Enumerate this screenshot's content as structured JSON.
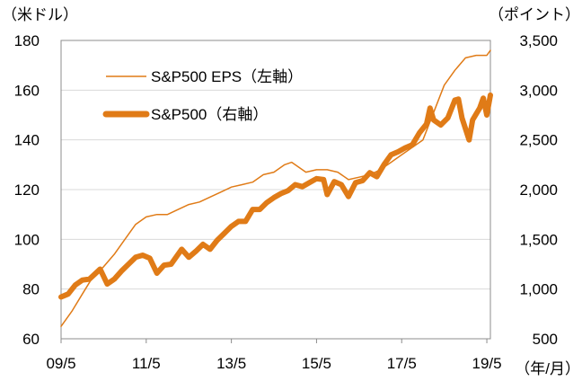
{
  "chart_data": {
    "type": "line",
    "title": "",
    "left_axis": {
      "unit": "（米ドル）",
      "ylim": [
        60,
        180
      ],
      "ticks": [
        "60",
        "80",
        "100",
        "120",
        "140",
        "160",
        "180"
      ]
    },
    "right_axis": {
      "unit": "（ポイント）",
      "ylim": [
        500,
        3500
      ],
      "ticks": [
        "500",
        "1,000",
        "1,500",
        "2,000",
        "2,500",
        "3,000",
        "3,500"
      ]
    },
    "x_axis": {
      "unit": "（年/月）",
      "range": [
        "2009-05",
        "2019-06"
      ],
      "ticks": [
        "09/5",
        "11/5",
        "13/5",
        "15/5",
        "17/5",
        "19/5"
      ]
    },
    "grid": true,
    "legend": "top-left",
    "colors": {
      "line": "#E07B17",
      "grid": "#d9d9d9",
      "axis": "#8c8c8c"
    },
    "series": [
      {
        "name": "S&P500 EPS（左軸）",
        "axis": "left",
        "style": "thin",
        "x": [
          "2009-05",
          "2009-08",
          "2009-11",
          "2010-02",
          "2010-05",
          "2010-08",
          "2010-11",
          "2011-02",
          "2011-05",
          "2011-08",
          "2011-11",
          "2012-02",
          "2012-05",
          "2012-08",
          "2012-11",
          "2013-02",
          "2013-05",
          "2013-08",
          "2013-11",
          "2014-02",
          "2014-05",
          "2014-08",
          "2014-10",
          "2014-12",
          "2015-02",
          "2015-05",
          "2015-08",
          "2015-11",
          "2016-02",
          "2016-05",
          "2016-08",
          "2016-11",
          "2017-02",
          "2017-05",
          "2017-08",
          "2017-11",
          "2018-02",
          "2018-05",
          "2018-08",
          "2018-11",
          "2019-02",
          "2019-05",
          "2019-06"
        ],
        "values": [
          65,
          71,
          78,
          85,
          89,
          94,
          100,
          106,
          109,
          110,
          110,
          112,
          114,
          115,
          117,
          119,
          121,
          122,
          123,
          126,
          127,
          130,
          131,
          129,
          127,
          128,
          128,
          127,
          124,
          125,
          126,
          128,
          131,
          134,
          137,
          140,
          151,
          162,
          168,
          173,
          174,
          174,
          176
        ]
      },
      {
        "name": "S&P500（右軸）",
        "axis": "right",
        "style": "thick",
        "x": [
          "2009-05",
          "2009-07",
          "2009-09",
          "2009-11",
          "2010-01",
          "2010-04",
          "2010-06",
          "2010-08",
          "2010-10",
          "2010-12",
          "2011-02",
          "2011-04",
          "2011-06",
          "2011-08",
          "2011-10",
          "2011-12",
          "2012-03",
          "2012-05",
          "2012-07",
          "2012-09",
          "2012-11",
          "2013-01",
          "2013-03",
          "2013-05",
          "2013-07",
          "2013-09",
          "2013-11",
          "2014-01",
          "2014-03",
          "2014-05",
          "2014-07",
          "2014-09",
          "2014-11",
          "2015-01",
          "2015-03",
          "2015-05",
          "2015-07",
          "2015-08",
          "2015-10",
          "2015-12",
          "2016-02",
          "2016-04",
          "2016-06",
          "2016-08",
          "2016-10",
          "2016-12",
          "2017-02",
          "2017-04",
          "2017-06",
          "2017-08",
          "2017-10",
          "2017-12",
          "2018-01",
          "2018-02",
          "2018-04",
          "2018-06",
          "2018-08",
          "2018-09",
          "2018-10",
          "2018-12",
          "2019-01",
          "2019-03",
          "2019-04",
          "2019-05",
          "2019-06"
        ],
        "values": [
          920,
          950,
          1040,
          1090,
          1100,
          1200,
          1050,
          1100,
          1180,
          1250,
          1320,
          1340,
          1310,
          1160,
          1240,
          1250,
          1400,
          1320,
          1380,
          1450,
          1400,
          1490,
          1560,
          1630,
          1680,
          1680,
          1800,
          1800,
          1870,
          1920,
          1960,
          1990,
          2050,
          2030,
          2070,
          2110,
          2100,
          1950,
          2080,
          2050,
          1930,
          2070,
          2090,
          2170,
          2130,
          2250,
          2350,
          2380,
          2420,
          2450,
          2570,
          2660,
          2820,
          2700,
          2650,
          2720,
          2900,
          2910,
          2720,
          2500,
          2700,
          2820,
          2920,
          2750,
          2950
        ]
      }
    ]
  }
}
